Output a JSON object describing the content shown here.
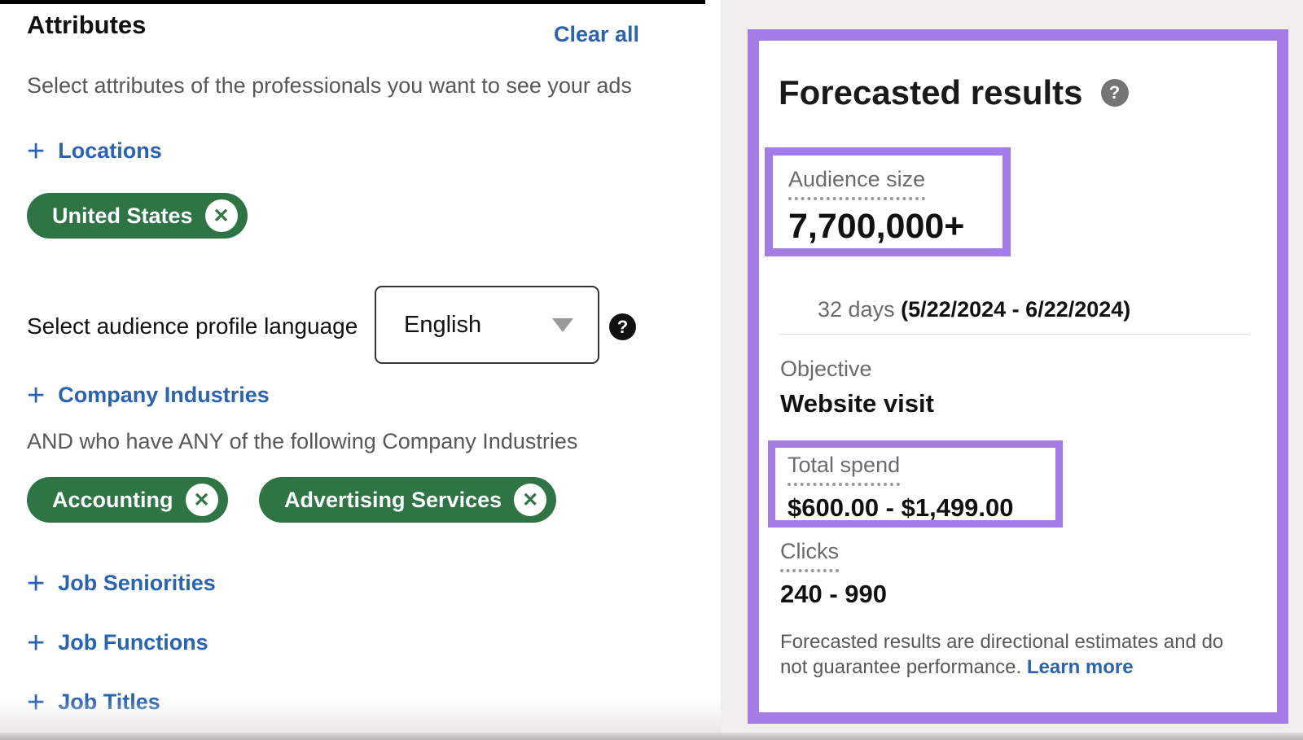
{
  "icons": {
    "plus": "+",
    "close": "✕",
    "question": "?"
  },
  "colors": {
    "link_blue": "#2a63b2",
    "pill_green": "#2e7444",
    "highlight_purple": "#a37ce8",
    "right_panel_bg": "#f1efee"
  },
  "attributes_panel": {
    "title": "Attributes",
    "clear_all_label": "Clear all",
    "description": "Select attributes of the professionals you want to see your ads",
    "locations": {
      "label": "Locations",
      "pills": [
        {
          "label": "United States"
        }
      ]
    },
    "language": {
      "label": "Select audience profile language",
      "selected_option": "English"
    },
    "company_industries": {
      "label": "Company Industries",
      "condition_text": "AND who have ANY of the following Company Industries",
      "pills": [
        {
          "label": "Accounting"
        },
        {
          "label": "Advertising Services"
        }
      ]
    },
    "extra_attribute_sections": [
      {
        "label": "Job Seniorities"
      },
      {
        "label": "Job Functions"
      },
      {
        "label": "Job Titles"
      }
    ]
  },
  "forecast_panel": {
    "title": "Forecasted results",
    "audience_size_label": "Audience size",
    "audience_size_value": "7,700,000+",
    "duration_days": "32 days ",
    "duration_range": "(5/22/2024 - 6/22/2024)",
    "objective_label": "Objective",
    "objective_value": "Website visit",
    "total_spend_label": "Total spend",
    "total_spend_value": "$600.00 - $1,499.00",
    "clicks_label": "Clicks",
    "clicks_value": "240 - 990",
    "disclaimer_text": "Forecasted results are directional estimates and do not guarantee performance.",
    "learn_more_label": "Learn more"
  }
}
